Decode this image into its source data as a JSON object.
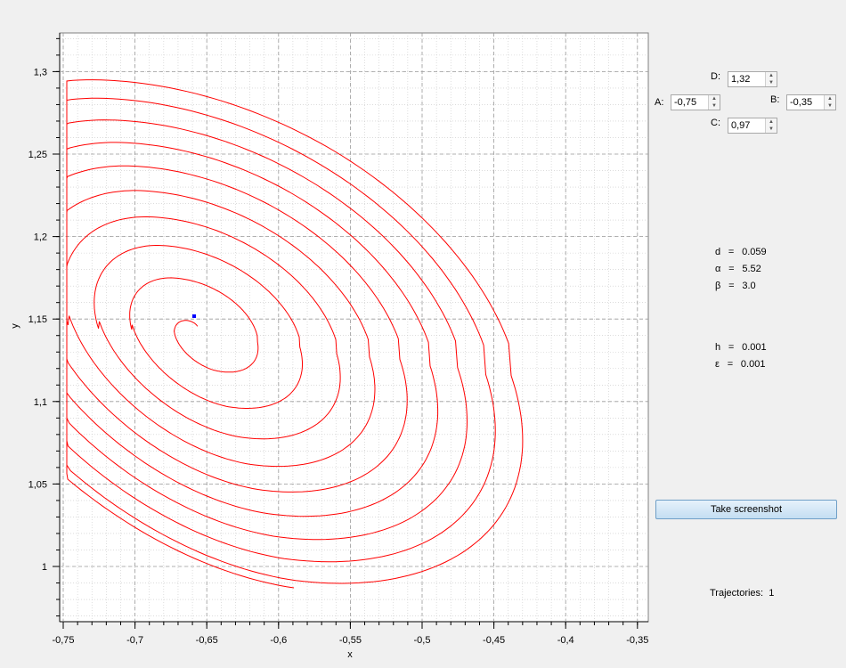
{
  "plot": {
    "xlabel": "x",
    "ylabel": "y",
    "x_ticks": [
      "-0,75",
      "-0,7",
      "-0,65",
      "-0,6",
      "-0,55",
      "-0,5",
      "-0,45",
      "-0,4",
      "-0,35"
    ],
    "y_ticks": [
      "1,3",
      "1,25",
      "1,2",
      "1,15",
      "1,1",
      "1,05",
      "1"
    ],
    "curve_color": "#ff0000",
    "marker_color": "#0000ff",
    "grid": "dotted"
  },
  "inputs": {
    "D": {
      "label": "D:",
      "value": "1,32"
    },
    "A": {
      "label": "A:",
      "value": "-0,75"
    },
    "B": {
      "label": "B:",
      "value": "-0,35"
    },
    "C": {
      "label": "C:",
      "value": "0,97"
    }
  },
  "params1": [
    {
      "sym": "d",
      "eq": "=",
      "val": "0.059"
    },
    {
      "sym": "α",
      "eq": "=",
      "val": "5.52"
    },
    {
      "sym": "β",
      "eq": "=",
      "val": "3.0"
    }
  ],
  "params2": [
    {
      "sym": "h",
      "eq": "=",
      "val": "0.001"
    },
    {
      "sym": "ε",
      "eq": "=",
      "val": "0.001"
    }
  ],
  "button": {
    "label": "Take screenshot"
  },
  "trajectories": {
    "label": "Trajectories:",
    "count": "1"
  }
}
